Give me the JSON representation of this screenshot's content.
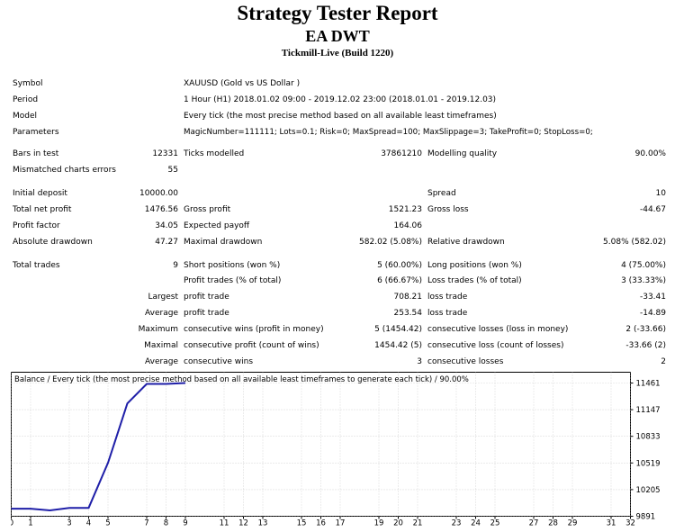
{
  "report": {
    "title": "Strategy Tester Report",
    "ea_name": "EA DWT",
    "server": "Tickmill-Live (Build 1220)"
  },
  "settings": {
    "symbol": {
      "label": "Symbol",
      "value": "XAUUSD (Gold vs US Dollar )"
    },
    "period": {
      "label": "Period",
      "value": "1 Hour (H1) 2018.01.02 09:00 - 2019.12.02 23:00 (2018.01.01 - 2019.12.03)"
    },
    "model": {
      "label": "Model",
      "value": "Every tick (the most precise method based on all available least timeframes)"
    },
    "parameters": {
      "label": "Parameters",
      "value": "MagicNumber=111111; Lots=0.1; Risk=0; MaxSpread=100; MaxSlippage=3; TakeProfit=0; StopLoss=0;"
    }
  },
  "stats": {
    "bars_in_test": {
      "label": "Bars in test",
      "value": "12331"
    },
    "ticks_modelled": {
      "label": "Ticks modelled",
      "value": "37861210"
    },
    "modelling_quality": {
      "label": "Modelling quality",
      "value": "90.00%"
    },
    "mismatched": {
      "label": "Mismatched charts errors",
      "value": "55"
    },
    "initial_deposit": {
      "label": "Initial deposit",
      "value": "10000.00"
    },
    "spread": {
      "label": "Spread",
      "value": "10"
    },
    "total_net_profit": {
      "label": "Total net profit",
      "value": "1476.56"
    },
    "gross_profit": {
      "label": "Gross profit",
      "value": "1521.23"
    },
    "gross_loss": {
      "label": "Gross loss",
      "value": "-44.67"
    },
    "profit_factor": {
      "label": "Profit factor",
      "value": "34.05"
    },
    "expected_payoff": {
      "label": "Expected payoff",
      "value": "164.06"
    },
    "absolute_drawdown": {
      "label": "Absolute drawdown",
      "value": "47.27"
    },
    "maximal_drawdown": {
      "label": "Maximal drawdown",
      "value": "582.02 (5.08%)"
    },
    "relative_drawdown": {
      "label": "Relative drawdown",
      "value": "5.08% (582.02)"
    },
    "total_trades": {
      "label": "Total trades",
      "value": "9"
    },
    "short_positions": {
      "label": "Short positions (won %)",
      "value": "5 (60.00%)"
    },
    "long_positions": {
      "label": "Long positions (won %)",
      "value": "4 (75.00%)"
    },
    "profit_trades": {
      "label": "Profit trades (% of total)",
      "value": "6 (66.67%)"
    },
    "loss_trades": {
      "label": "Loss trades (% of total)",
      "value": "3 (33.33%)"
    },
    "largest": {
      "prefix": "Largest",
      "profit_label": "profit trade",
      "profit_value": "708.21",
      "loss_label": "loss trade",
      "loss_value": "-33.41"
    },
    "average": {
      "prefix": "Average",
      "profit_label": "profit trade",
      "profit_value": "253.54",
      "loss_label": "loss trade",
      "loss_value": "-14.89"
    },
    "maximum": {
      "prefix": "Maximum",
      "profit_label": "consecutive wins (profit in money)",
      "profit_value": "5 (1454.42)",
      "loss_label": "consecutive losses (loss in money)",
      "loss_value": "2 (-33.66)"
    },
    "maximal": {
      "prefix": "Maximal",
      "profit_label": "consecutive profit (count of wins)",
      "profit_value": "1454.42 (5)",
      "loss_label": "consecutive loss (count of losses)",
      "loss_value": "-33.66 (2)"
    },
    "average2": {
      "prefix": "Average",
      "profit_label": "consecutive wins",
      "profit_value": "3",
      "loss_label": "consecutive losses",
      "loss_value": "2"
    }
  },
  "colors": {
    "balance_line": "#1f1fa8",
    "grid": "#c0c0c0",
    "frame": "#000000"
  },
  "chart_data": {
    "type": "line",
    "title": "Balance / Every tick (the most precise method based on all available least timeframes to generate each tick) / 90.00%",
    "series": [
      {
        "values": [
          [
            0,
            9980
          ],
          [
            1,
            9980
          ],
          [
            2,
            9960
          ],
          [
            3,
            9990
          ],
          [
            4,
            9990
          ],
          [
            5,
            10520
          ],
          [
            6,
            11220
          ],
          [
            7,
            11450
          ],
          [
            8,
            11450
          ],
          [
            9,
            11461
          ]
        ]
      }
    ],
    "x_ticks": [
      0,
      1,
      3,
      4,
      5,
      7,
      8,
      9,
      11,
      12,
      13,
      15,
      16,
      17,
      19,
      20,
      21,
      23,
      24,
      25,
      27,
      28,
      29,
      31,
      32
    ],
    "y_ticks": [
      "9891",
      "10205",
      "10519",
      "10833",
      "11147",
      "11461"
    ],
    "xlim": [
      0,
      32
    ],
    "ylim": [
      9891,
      11461
    ],
    "grid": true
  }
}
